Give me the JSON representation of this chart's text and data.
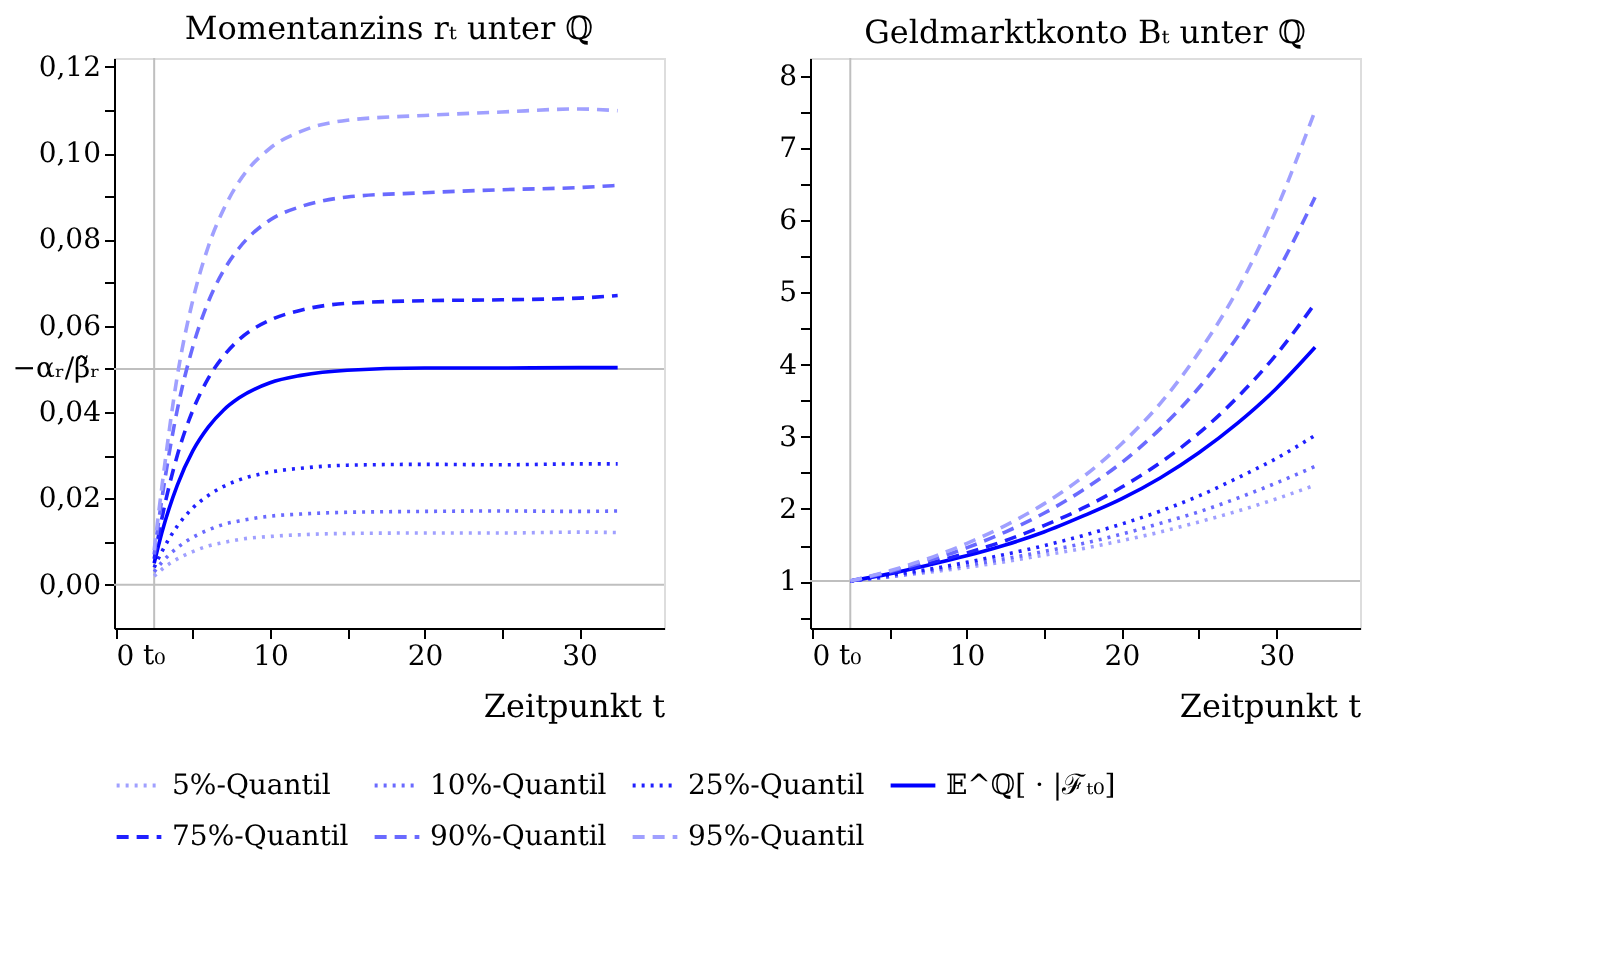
{
  "chart_data": [
    {
      "type": "line",
      "title": "Momentanzins rₜ unter ℚ",
      "xlabel": "Zeitpunkt t",
      "legend": "bottom",
      "xlim": [
        -0.1,
        35.5
      ],
      "ylim": [
        -0.01,
        0.122
      ],
      "xticks": [
        0,
        {
          "value": 5,
          "label": null
        },
        10,
        {
          "value": 15,
          "label": null
        },
        20,
        {
          "value": 25,
          "label": null
        },
        30
      ],
      "yticks": [
        {
          "value": 0,
          "label": "0,00"
        },
        {
          "value": 0.01,
          "label": null
        },
        {
          "value": 0.02,
          "label": "0,02"
        },
        {
          "value": 0.03,
          "label": null
        },
        {
          "value": 0.04,
          "label": "0,04"
        },
        {
          "value": 0.05,
          "label": null
        },
        {
          "value": 0.06,
          "label": "0,06"
        },
        {
          "value": 0.07,
          "label": null
        },
        {
          "value": 0.08,
          "label": "0,08"
        },
        {
          "value": 0.09,
          "label": null
        },
        {
          "value": 0.1,
          "label": "0,10"
        },
        {
          "value": 0.11,
          "label": null
        },
        {
          "value": 0.12,
          "label": "0,12"
        }
      ],
      "ref_lines": [
        {
          "axis": "y",
          "value": 0,
          "color": "#bfbfbf"
        },
        {
          "axis": "y",
          "value": 0.05,
          "color": "#bfbfbf",
          "label": "−αᵣ/β̃ᵣ"
        },
        {
          "axis": "x",
          "value": 2.5,
          "color": "#bfbfbf",
          "label": "t₀"
        }
      ],
      "x": [
        2.5,
        3,
        4,
        5,
        6,
        7,
        8,
        10,
        12,
        15,
        20,
        25,
        30,
        32.5
      ],
      "series": [
        {
          "name": "5%-Quantil",
          "color": "#a0a0ff",
          "line_style": "dotted",
          "values": [
            0.002,
            0.0036,
            0.006,
            0.0077,
            0.009,
            0.0098,
            0.0105,
            0.0112,
            0.0116,
            0.0119,
            0.012,
            0.012,
            0.0122,
            0.0121
          ]
        },
        {
          "name": "10%-Quantil",
          "color": "#6a6aff",
          "line_style": "dotted",
          "values": [
            0.003,
            0.0052,
            0.0086,
            0.011,
            0.0127,
            0.014,
            0.0148,
            0.0159,
            0.0164,
            0.0168,
            0.017,
            0.0171,
            0.017,
            0.0171
          ]
        },
        {
          "name": "25%-Quantil",
          "color": "#2020ff",
          "line_style": "dotted",
          "values": [
            0.004,
            0.0077,
            0.0136,
            0.0178,
            0.0207,
            0.0228,
            0.0243,
            0.0261,
            0.027,
            0.0277,
            0.0279,
            0.0278,
            0.028,
            0.028
          ]
        },
        {
          "name": "𝔼^ℚ[ · |ℱₜ₀]",
          "color": "#0000ff",
          "line_style": "solid",
          "values": [
            0.005,
            0.0121,
            0.0231,
            0.031,
            0.0365,
            0.0405,
            0.0433,
            0.0468,
            0.0485,
            0.0497,
            0.0502,
            0.0502,
            0.0503,
            0.0503
          ]
        },
        {
          "name": "75%-Quantil",
          "color": "#2020ff",
          "line_style": "dashed",
          "values": [
            0.006,
            0.0154,
            0.03,
            0.0404,
            0.0478,
            0.053,
            0.0568,
            0.0613,
            0.0636,
            0.0652,
            0.0658,
            0.066,
            0.0664,
            0.067
          ]
        },
        {
          "name": "90%-Quantil",
          "color": "#6a6aff",
          "line_style": "dashed",
          "values": [
            0.007,
            0.0199,
            0.0406,
            0.0551,
            0.0655,
            0.0728,
            0.078,
            0.0845,
            0.0876,
            0.0898,
            0.0908,
            0.0915,
            0.092,
            0.0925
          ]
        },
        {
          "name": "95%-Quantil",
          "color": "#a0a0ff",
          "line_style": "dashed",
          "values": [
            0.008,
            0.0227,
            0.0484,
            0.0659,
            0.0783,
            0.087,
            0.0934,
            0.1011,
            0.105,
            0.1076,
            0.1087,
            0.1095,
            0.1102,
            0.1098
          ]
        }
      ]
    },
    {
      "type": "line",
      "title": "Geldmarktkonto Bₜ unter ℚ",
      "xlabel": "Zeitpunkt t",
      "legend": "bottom",
      "xlim": [
        -0.1,
        35.4
      ],
      "ylim": [
        0.35,
        8.25
      ],
      "xticks": [
        0,
        {
          "value": 5,
          "label": null
        },
        10,
        {
          "value": 15,
          "label": null
        },
        20,
        {
          "value": 25,
          "label": null
        },
        30
      ],
      "yticks": [
        {
          "value": 0.5,
          "label": null
        },
        1,
        {
          "value": 1.5,
          "label": null
        },
        2,
        {
          "value": 2.5,
          "label": null
        },
        3,
        {
          "value": 3.5,
          "label": null
        },
        4,
        {
          "value": 4.5,
          "label": null
        },
        5,
        {
          "value": 5.5,
          "label": null
        },
        6,
        {
          "value": 6.5,
          "label": null
        },
        7,
        {
          "value": 7.5,
          "label": null
        },
        8
      ],
      "ref_lines": [
        {
          "axis": "y",
          "value": 1,
          "color": "#bfbfbf"
        },
        {
          "axis": "x",
          "value": 2.5,
          "color": "#bfbfbf",
          "label": "t₀"
        }
      ],
      "x": [
        2.5,
        5,
        7.5,
        10,
        12.5,
        15,
        17.5,
        20,
        22.5,
        25,
        27.5,
        30,
        32.5
      ],
      "series": [
        {
          "name": "5%-Quantil",
          "color": "#a0a0ff",
          "line_style": "dotted",
          "values": [
            1,
            1.06,
            1.12,
            1.19,
            1.27,
            1.36,
            1.45,
            1.56,
            1.68,
            1.82,
            1.97,
            2.14,
            2.33
          ]
        },
        {
          "name": "10%-Quantil",
          "color": "#6a6aff",
          "line_style": "dotted",
          "values": [
            1,
            1.06,
            1.14,
            1.22,
            1.31,
            1.41,
            1.52,
            1.65,
            1.8,
            1.96,
            2.15,
            2.36,
            2.59
          ]
        },
        {
          "name": "25%-Quantil",
          "color": "#2020ff",
          "line_style": "dotted",
          "values": [
            1,
            1.08,
            1.16,
            1.26,
            1.37,
            1.49,
            1.63,
            1.79,
            1.97,
            2.18,
            2.43,
            2.7,
            3.02
          ]
        },
        {
          "name": "𝔼^ℚ[ · |ℱₜ₀]",
          "color": "#0000ff",
          "line_style": "solid",
          "values": [
            1,
            1.1,
            1.22,
            1.35,
            1.5,
            1.68,
            1.9,
            2.14,
            2.43,
            2.78,
            3.19,
            3.67,
            4.24
          ]
        },
        {
          "name": "75%-Quantil",
          "color": "#2020ff",
          "line_style": "dashed",
          "values": [
            1,
            1.11,
            1.24,
            1.39,
            1.56,
            1.77,
            2.01,
            2.3,
            2.64,
            3.05,
            3.55,
            4.14,
            4.85
          ]
        },
        {
          "name": "90%-Quantil",
          "color": "#6a6aff",
          "line_style": "dashed",
          "values": [
            1,
            1.13,
            1.28,
            1.46,
            1.68,
            1.94,
            2.26,
            2.64,
            3.11,
            3.68,
            4.39,
            5.26,
            6.32
          ]
        },
        {
          "name": "95%-Quantil",
          "color": "#a0a0ff",
          "line_style": "dashed",
          "values": [
            1,
            1.14,
            1.31,
            1.52,
            1.77,
            2.07,
            2.44,
            2.9,
            3.46,
            4.17,
            5.04,
            6.15,
            7.52
          ]
        }
      ]
    }
  ]
}
